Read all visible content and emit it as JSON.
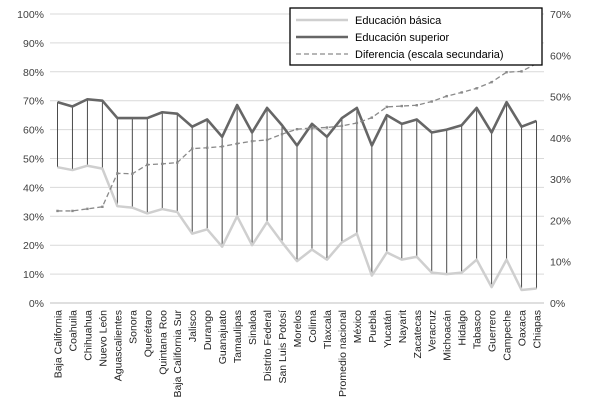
{
  "chart_data": {
    "type": "line",
    "title": "",
    "xlabel": "",
    "ylabel": "",
    "ylim": [
      0,
      100
    ],
    "y2lim": [
      0,
      70
    ],
    "yticks": [
      "0%",
      "10%",
      "20%",
      "30%",
      "40%",
      "50%",
      "60%",
      "70%",
      "80%",
      "90%",
      "100%"
    ],
    "y2ticks": [
      "0%",
      "10%",
      "20%",
      "30%",
      "40%",
      "50%",
      "60%",
      "70%"
    ],
    "grid": true,
    "legend_position": "top-right",
    "categories": [
      "Baja California",
      "Coahuila",
      "Chihuahua",
      "Nuevo León",
      "Aguascalientes",
      "Sonora",
      "Querétaro",
      "Quintana Roo",
      "Baja California Sur",
      "Jalisco",
      "Durango",
      "Guanajuato",
      "Tamaulipas",
      "Sinaloa",
      "Distrito Federal",
      "San Luis Potosí",
      "Morelos",
      "Colima",
      "Tlaxcala",
      "Promedio nacional",
      "México",
      "Puebla",
      "Yucatán",
      "Nayarit",
      "Zacatecas",
      "Veracruz",
      "Michoacán",
      "Hidalgo",
      "Tabasco",
      "Guerrero",
      "Campeche",
      "Oaxaca",
      "Chiapas"
    ],
    "series": [
      {
        "name": "Educación básica",
        "axis": "primary",
        "color": "#cfcfcf",
        "values": [
          47,
          46,
          47.5,
          46.5,
          33.5,
          33,
          31,
          32.5,
          31.5,
          24,
          25.5,
          19.5,
          30,
          20,
          28,
          21,
          14.5,
          18.5,
          15,
          21,
          24,
          9.5,
          17.5,
          15,
          16,
          10.5,
          10,
          10.5,
          15,
          5.5,
          15,
          4.5,
          5
        ]
      },
      {
        "name": "Educación superior",
        "axis": "primary",
        "color": "#666666",
        "values": [
          69.5,
          68,
          70.5,
          70,
          64,
          64,
          64,
          66,
          65.5,
          61,
          63.5,
          57.5,
          68.5,
          59,
          67.5,
          61.5,
          54.5,
          62,
          57.5,
          64,
          67.5,
          54.5,
          65,
          62,
          63.5,
          59,
          60,
          61.5,
          67.5,
          59,
          69.5,
          61,
          63
        ]
      },
      {
        "name": "Diferencia (escala secundaria)",
        "axis": "secondary",
        "color": "#8a8a8a",
        "dashed": true,
        "values": [
          22.3,
          22.3,
          22.8,
          23.3,
          31.4,
          31.3,
          33.5,
          33.7,
          34,
          37.4,
          37.6,
          37.9,
          38.6,
          39.2,
          39.5,
          40.9,
          42.1,
          42.4,
          42.5,
          42.9,
          43.6,
          44.9,
          47.5,
          47.7,
          47.9,
          48.8,
          50.1,
          51,
          52,
          53.5,
          55.9,
          56.1,
          58
        ]
      }
    ]
  }
}
